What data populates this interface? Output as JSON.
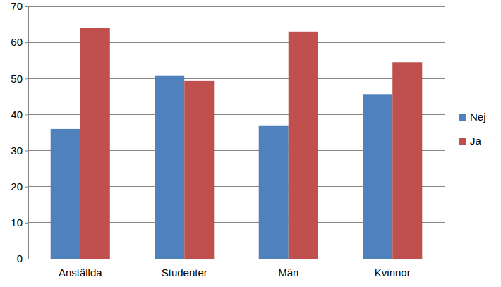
{
  "chart_data": {
    "type": "bar",
    "categories": [
      "Anställda",
      "Studenter",
      "Män",
      "Kvinnor"
    ],
    "series": [
      {
        "name": "Nej",
        "color": "#4f81bd",
        "values": [
          36,
          50.7,
          37,
          45.5
        ]
      },
      {
        "name": "Ja",
        "color": "#c0504d",
        "values": [
          64,
          49.3,
          63,
          54.5
        ]
      }
    ],
    "ylim": [
      0,
      70
    ],
    "yticks": [
      0,
      10,
      20,
      30,
      40,
      50,
      60,
      70
    ],
    "grid": true,
    "legend": "right"
  }
}
